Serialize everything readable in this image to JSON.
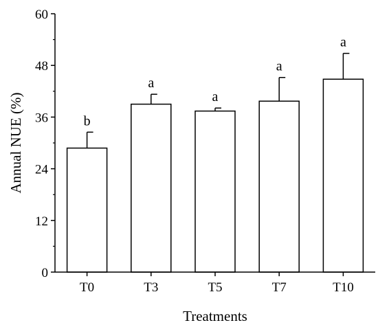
{
  "chart_data": {
    "type": "bar",
    "title": "",
    "xlabel": "Treatments",
    "ylabel": "Annual NUE (%)",
    "categories": [
      "T0",
      "T3",
      "T5",
      "T7",
      "T10"
    ],
    "values": [
      28.8,
      39.0,
      37.4,
      39.7,
      44.8
    ],
    "errors": [
      3.7,
      2.3,
      0.7,
      5.5,
      6.0
    ],
    "significance": [
      "b",
      "a",
      "a",
      "a",
      "a"
    ],
    "ylim": [
      0,
      60
    ],
    "yticks": [
      0,
      12,
      24,
      36,
      48,
      60
    ],
    "grid": false,
    "colors": {
      "bar_fill": "#ffffff",
      "bar_stroke": "#000000",
      "axis": "#000000"
    }
  }
}
